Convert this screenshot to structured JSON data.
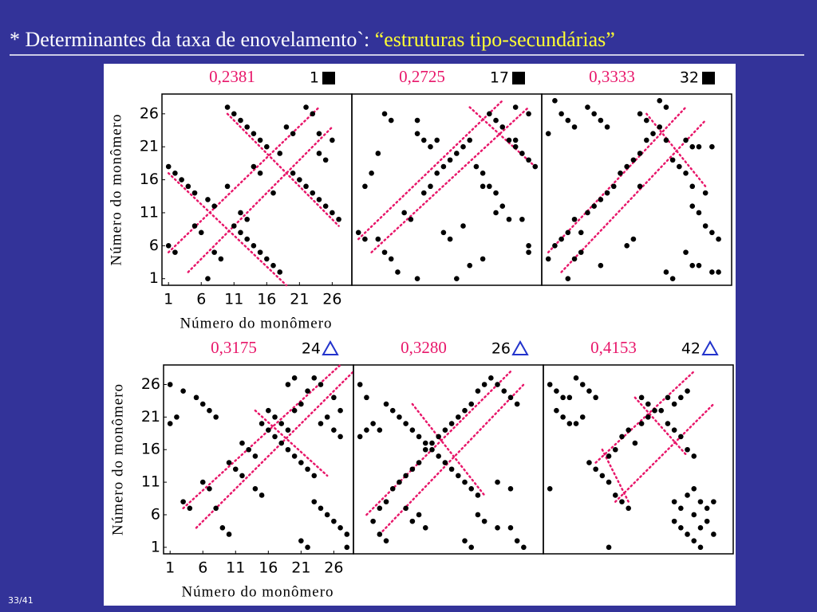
{
  "title": "* Determinantes da taxa de enovelamento`: ",
  "title_highlight": "“estruturas tipo-secundárias”",
  "slide_number": "33/41",
  "chart_data": [
    {
      "type": "scatter",
      "label": "0,2381",
      "id_label": "1",
      "marker": "square",
      "marker_color": "#000000",
      "color": "#000000",
      "guide_color": "#e8176a",
      "x": [
        1,
        2,
        3,
        4,
        5,
        7,
        8,
        11,
        12,
        13,
        14,
        15,
        16,
        17,
        18,
        10,
        11,
        12,
        13,
        14,
        15,
        16,
        18,
        20,
        21,
        22,
        23,
        24,
        25,
        26,
        27,
        1,
        2,
        5,
        6,
        7,
        8,
        9,
        10,
        12,
        13,
        14,
        15,
        17,
        19,
        20,
        22,
        23,
        24,
        26,
        24,
        25
      ],
      "y": [
        18,
        17,
        16,
        15,
        14,
        13,
        12,
        9,
        8,
        7,
        6,
        5,
        4,
        3,
        2,
        27,
        26,
        25,
        24,
        23,
        22,
        21,
        20,
        17,
        16,
        15,
        14,
        13,
        12,
        11,
        10,
        6,
        5,
        9,
        8,
        1,
        5,
        4,
        15,
        11,
        10,
        18,
        17,
        14,
        24,
        23,
        27,
        26,
        23,
        22,
        20,
        19
      ],
      "guides": [
        [
          1,
          17,
          19,
          0
        ],
        [
          10,
          26,
          27,
          9
        ],
        [
          1,
          5,
          24,
          27
        ],
        [
          4,
          2,
          26,
          24
        ]
      ],
      "xlim": [
        0,
        29
      ],
      "ylim": [
        0,
        29
      ],
      "xticks": [
        1,
        6,
        11,
        16,
        21,
        26
      ],
      "yticks": [
        1,
        6,
        11,
        16,
        21,
        26
      ],
      "xlabel": "Número do monômero",
      "ylabel": "Número do monômero"
    },
    {
      "type": "scatter",
      "label": "0,2725",
      "id_label": "17",
      "marker": "square",
      "marker_color": "#000000",
      "color": "#000000",
      "guide_color": "#e8176a",
      "x": [
        1,
        2,
        4,
        5,
        6,
        7,
        8,
        9,
        11,
        12,
        13,
        14,
        15,
        16,
        17,
        18,
        19,
        20,
        21,
        22,
        23,
        24,
        26,
        27,
        27,
        2,
        3,
        4,
        5,
        6,
        10,
        10,
        11,
        12,
        13,
        16,
        18,
        20,
        21,
        22,
        23,
        24,
        25,
        26,
        27,
        28,
        25,
        27,
        10,
        14,
        15,
        17,
        20,
        22,
        25
      ],
      "y": [
        8,
        7,
        7,
        5,
        4,
        2,
        11,
        10,
        14,
        15,
        17,
        18,
        19,
        20,
        21,
        22,
        18,
        17,
        15,
        14,
        12,
        10,
        10,
        6,
        5,
        15,
        17,
        20,
        26,
        25,
        25,
        23,
        22,
        21,
        22,
        1,
        3,
        4,
        26,
        25,
        24,
        22,
        21,
        20,
        19,
        18,
        27,
        26,
        1,
        8,
        7,
        9,
        15,
        11,
        22
      ],
      "guides": [
        [
          1,
          7,
          23,
          28
        ],
        [
          3,
          5,
          27,
          27
        ],
        [
          18,
          27,
          28,
          18
        ]
      ],
      "xlim": [
        0,
        29
      ],
      "ylim": [
        0,
        29
      ]
    },
    {
      "type": "scatter",
      "label": "0,3333",
      "id_label": "32",
      "marker": "square",
      "marker_color": "#000000",
      "color": "#000000",
      "guide_color": "#e8176a",
      "x": [
        1,
        2,
        3,
        4,
        5,
        6,
        7,
        8,
        9,
        10,
        11,
        12,
        13,
        14,
        15,
        16,
        17,
        18,
        19,
        20,
        21,
        22,
        23,
        25,
        1,
        2,
        3,
        4,
        5,
        7,
        8,
        9,
        10,
        15,
        16,
        18,
        19,
        22,
        23,
        24,
        26,
        23,
        24,
        25,
        26,
        27,
        22,
        23,
        24,
        26,
        27,
        19,
        20,
        4,
        5,
        6,
        9,
        13,
        14,
        15
      ],
      "y": [
        4,
        6,
        7,
        8,
        10,
        8,
        11,
        12,
        13,
        14,
        15,
        17,
        18,
        19,
        20,
        22,
        23,
        24,
        22,
        19,
        18,
        17,
        15,
        14,
        23,
        28,
        26,
        25,
        24,
        27,
        26,
        25,
        24,
        26,
        25,
        28,
        27,
        22,
        21,
        21,
        21,
        12,
        11,
        9,
        8,
        7,
        5,
        3,
        3,
        2,
        2,
        2,
        1,
        1,
        4,
        5,
        3,
        6,
        7,
        15
      ],
      "guides": [
        [
          1,
          5,
          22,
          27
        ],
        [
          3,
          2,
          25,
          25
        ],
        [
          16,
          26,
          25,
          15
        ]
      ],
      "xlim": [
        0,
        29
      ],
      "ylim": [
        0,
        29
      ]
    },
    {
      "type": "scatter",
      "label": "0,3175",
      "id_label": "24",
      "marker": "triangle",
      "marker_color": "#2233cc",
      "color": "#000000",
      "guide_color": "#e8176a",
      "x": [
        1,
        1,
        2,
        3,
        5,
        6,
        7,
        8,
        3,
        4,
        6,
        7,
        8,
        9,
        10,
        10,
        11,
        12,
        12,
        13,
        14,
        15,
        16,
        17,
        18,
        19,
        20,
        21,
        22,
        23,
        14,
        15,
        16,
        17,
        18,
        19,
        20,
        21,
        22,
        23,
        24,
        26,
        27,
        19,
        20,
        26,
        27,
        22,
        21,
        23,
        24,
        25,
        26,
        27,
        28,
        28,
        24,
        25
      ],
      "y": [
        26,
        20,
        21,
        25,
        24,
        23,
        22,
        21,
        8,
        7,
        11,
        10,
        7,
        4,
        3,
        14,
        13,
        12,
        17,
        16,
        15,
        20,
        19,
        18,
        17,
        16,
        15,
        14,
        13,
        12,
        10,
        9,
        22,
        21,
        20,
        19,
        22,
        23,
        25,
        27,
        26,
        24,
        22,
        26,
        27,
        19,
        18,
        1,
        2,
        8,
        7,
        6,
        5,
        4,
        3,
        1,
        20,
        21
      ],
      "guides": [
        [
          3,
          7,
          27,
          29
        ],
        [
          5,
          4,
          29,
          28
        ],
        [
          14,
          22,
          25,
          12
        ]
      ],
      "xlim": [
        0,
        29
      ],
      "ylim": [
        0,
        29
      ],
      "xticks": [
        1,
        6,
        11,
        16,
        21,
        26
      ],
      "yticks": [
        1,
        6,
        11,
        16,
        21,
        26
      ],
      "xlabel": "Número do monômero",
      "ylabel": "Número do monômero"
    },
    {
      "type": "scatter",
      "label": "0,3280",
      "id_label": "26",
      "marker": "triangle",
      "marker_color": "#2233cc",
      "color": "#000000",
      "guide_color": "#e8176a",
      "x": [
        1,
        2,
        3,
        4,
        1,
        2,
        5,
        6,
        7,
        8,
        9,
        10,
        11,
        12,
        13,
        14,
        15,
        16,
        17,
        18,
        19,
        4,
        5,
        6,
        7,
        8,
        9,
        10,
        11,
        12,
        13,
        14,
        15,
        16,
        17,
        18,
        19,
        20,
        21,
        22,
        23,
        24,
        25,
        3,
        4,
        5,
        10,
        11,
        19,
        20,
        22,
        24,
        25,
        26,
        18,
        17,
        8,
        9,
        22,
        24
      ],
      "y": [
        26,
        24,
        20,
        19,
        18,
        19,
        23,
        22,
        21,
        20,
        19,
        18,
        17,
        16,
        15,
        14,
        13,
        12,
        11,
        10,
        9,
        7,
        8,
        10,
        11,
        12,
        13,
        14,
        16,
        17,
        18,
        19,
        20,
        21,
        22,
        23,
        25,
        26,
        27,
        26,
        25,
        24,
        23,
        5,
        3,
        2,
        6,
        4,
        6,
        5,
        4,
        4,
        2,
        1,
        1,
        2,
        7,
        5,
        11,
        10
      ],
      "guides": [
        [
          2,
          6,
          24,
          28
        ],
        [
          4,
          3,
          26,
          26
        ],
        [
          9,
          23,
          20,
          9
        ]
      ],
      "xlim": [
        0,
        29
      ],
      "ylim": [
        0,
        29
      ]
    },
    {
      "type": "scatter",
      "label": "0,4153",
      "id_label": "42",
      "marker": "triangle",
      "marker_color": "#2233cc",
      "color": "#000000",
      "guide_color": "#e8176a",
      "x": [
        1,
        2,
        3,
        4,
        5,
        6,
        7,
        8,
        2,
        3,
        4,
        5,
        6,
        1,
        7,
        8,
        9,
        10,
        11,
        12,
        13,
        10,
        11,
        12,
        13,
        14,
        15,
        16,
        17,
        18,
        19,
        20,
        21,
        22,
        23,
        19,
        20,
        21,
        22,
        15,
        16,
        20,
        20,
        21,
        22,
        23,
        24,
        21,
        22,
        23,
        24,
        25,
        26,
        25,
        24,
        26,
        23,
        10
      ],
      "y": [
        26,
        25,
        24,
        24,
        27,
        26,
        25,
        24,
        22,
        21,
        20,
        20,
        21,
        10,
        14,
        13,
        12,
        11,
        9,
        8,
        7,
        15,
        16,
        18,
        19,
        17,
        20,
        21,
        22,
        22,
        20,
        19,
        18,
        16,
        15,
        24,
        23,
        24,
        25,
        24,
        23,
        8,
        5,
        4,
        3,
        2,
        1,
        7,
        9,
        10,
        8,
        7,
        8,
        5,
        4,
        3,
        6,
        1
      ],
      "guides": [
        [
          8,
          14,
          23,
          28
        ],
        [
          11,
          8,
          26,
          23
        ],
        [
          14,
          24,
          22,
          15
        ],
        [
          9,
          16,
          13,
          8
        ]
      ],
      "xlim": [
        0,
        29
      ],
      "ylim": [
        0,
        29
      ]
    }
  ]
}
